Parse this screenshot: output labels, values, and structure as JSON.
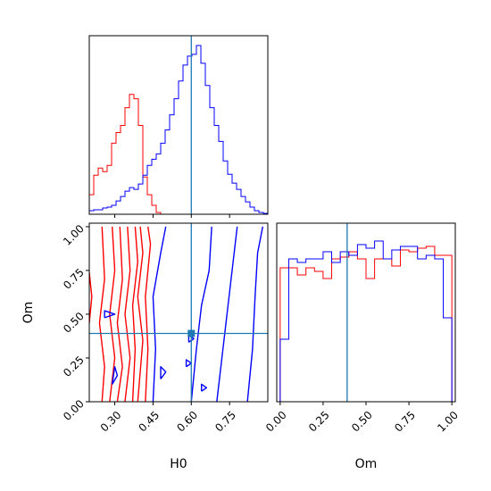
{
  "chart_data": {
    "type": "corner",
    "parameters": [
      "H0",
      "Om"
    ],
    "truths": {
      "H0": 0.6,
      "Om": 0.39
    },
    "colors": {
      "series_a": "#ff0000",
      "series_b": "#0000ff",
      "truth": "#1f77b4"
    },
    "series": [
      {
        "color": "#ff0000"
      },
      {
        "color": "#0000ff"
      }
    ],
    "panels": [
      {
        "id": "hist-H0",
        "type": "histogram",
        "xlim": [
          0.2,
          0.9
        ],
        "bin_width": 0.0175,
        "bin_start": 0.2,
        "series_counts": [
          [
            0.22,
            0.44,
            0.52,
            0.48,
            0.55,
            0.8,
            0.92,
            1.0,
            1.2,
            1.35,
            1.3,
            1.0,
            0.42,
            0.22,
            0.1,
            0.02
          ],
          [
            0.04,
            0.05,
            0.05,
            0.07,
            0.08,
            0.1,
            0.15,
            0.2,
            0.26,
            0.3,
            0.28,
            0.34,
            0.44,
            0.55,
            0.62,
            0.68,
            0.8,
            0.95,
            1.12,
            1.3,
            1.5,
            1.68,
            1.78,
            1.8,
            1.9,
            1.7,
            1.45,
            1.2,
            1.0,
            0.82,
            0.6,
            0.45,
            0.35,
            0.28,
            0.2,
            0.14,
            0.08,
            0.04,
            0.02,
            0.01
          ]
        ],
        "red_bin_start": 0.2,
        "blue_bin_start": 0.2
      },
      {
        "id": "hist-Om",
        "type": "histogram",
        "xlim": [
          -0.02,
          1.02
        ],
        "xticks": [
          0.0,
          0.25,
          0.5,
          0.75,
          1.0
        ],
        "xticklabels": [
          "0.00",
          "0.25",
          "0.50",
          "0.75",
          "1.00"
        ],
        "bin_edges": [
          0.0,
          0.05,
          0.1,
          0.15,
          0.2,
          0.25,
          0.3,
          0.35,
          0.4,
          0.45,
          0.5,
          0.55,
          0.6,
          0.65,
          0.7,
          0.75,
          0.8,
          0.85,
          0.9,
          0.95,
          1.0
        ],
        "series_counts": [
          [
            0.75,
            0.75,
            0.71,
            0.75,
            0.73,
            0.69,
            0.8,
            0.81,
            0.84,
            0.8,
            0.69,
            0.8,
            0.8,
            0.76,
            0.85,
            0.84,
            0.86,
            0.87,
            0.82,
            0.82
          ],
          [
            0.35,
            0.8,
            0.78,
            0.8,
            0.8,
            0.84,
            0.78,
            0.84,
            0.82,
            0.88,
            0.86,
            0.9,
            0.8,
            0.85,
            0.87,
            0.87,
            0.8,
            0.82,
            0.8,
            0.47
          ]
        ],
        "ylim": [
          0.0,
          1.0
        ]
      },
      {
        "id": "contour-H0-Om",
        "type": "contour",
        "xlim": [
          0.2,
          0.9
        ],
        "ylim": [
          0.0,
          1.02
        ],
        "xticks": [
          0.3,
          0.45,
          0.6,
          0.75
        ],
        "xticklabels": [
          "0.30",
          "0.45",
          "0.60",
          "0.75"
        ],
        "yticks": [
          0.0,
          0.25,
          0.5,
          0.75,
          1.0
        ],
        "yticklabels": [
          "0.00",
          "0.25",
          "0.50",
          "0.75",
          "1.00"
        ],
        "xlabel": "H0",
        "ylabel": "Om",
        "series_contours": [
          [
            [
              [
                0.2,
                0.74
              ],
              [
                0.21,
                0.6
              ],
              [
                0.2,
                0.45
              ]
            ],
            [
              [
                0.25,
                0.0
              ],
              [
                0.26,
                0.2
              ],
              [
                0.24,
                0.45
              ],
              [
                0.26,
                0.7
              ],
              [
                0.25,
                1.0
              ]
            ],
            [
              [
                0.28,
                0.0
              ],
              [
                0.3,
                0.25
              ],
              [
                0.28,
                0.5
              ],
              [
                0.3,
                0.75
              ],
              [
                0.29,
                1.0
              ]
            ],
            [
              [
                0.31,
                0.0
              ],
              [
                0.33,
                0.2
              ],
              [
                0.31,
                0.45
              ],
              [
                0.33,
                0.7
              ],
              [
                0.32,
                1.0
              ]
            ],
            [
              [
                0.34,
                0.0
              ],
              [
                0.36,
                0.25
              ],
              [
                0.34,
                0.5
              ],
              [
                0.36,
                0.75
              ],
              [
                0.35,
                1.0
              ]
            ],
            [
              [
                0.37,
                0.0
              ],
              [
                0.38,
                0.3
              ],
              [
                0.37,
                0.55
              ],
              [
                0.39,
                0.8
              ],
              [
                0.38,
                1.0
              ]
            ],
            [
              [
                0.39,
                0.0
              ],
              [
                0.41,
                0.35
              ],
              [
                0.39,
                0.6
              ],
              [
                0.41,
                0.85
              ],
              [
                0.4,
                1.0
              ]
            ],
            [
              [
                0.42,
                0.0
              ],
              [
                0.43,
                0.3
              ],
              [
                0.42,
                0.6
              ],
              [
                0.44,
                0.9
              ],
              [
                0.43,
                1.0
              ]
            ]
          ],
          [
            [
              [
                0.45,
                0.0
              ],
              [
                0.46,
                0.3
              ],
              [
                0.45,
                0.6
              ],
              [
                0.48,
                0.85
              ],
              [
                0.5,
                1.0
              ]
            ],
            [
              [
                0.6,
                0.0
              ],
              [
                0.62,
                0.3
              ],
              [
                0.64,
                0.55
              ],
              [
                0.67,
                0.75
              ],
              [
                0.68,
                1.0
              ]
            ],
            [
              [
                0.7,
                0.0
              ],
              [
                0.72,
                0.25
              ],
              [
                0.74,
                0.5
              ],
              [
                0.76,
                0.75
              ],
              [
                0.78,
                1.0
              ]
            ],
            [
              [
                0.82,
                0.0
              ],
              [
                0.84,
                0.3
              ],
              [
                0.85,
                0.6
              ],
              [
                0.86,
                0.85
              ],
              [
                0.88,
                1.0
              ]
            ],
            [
              [
                0.29,
                0.1
              ],
              [
                0.31,
                0.15
              ],
              [
                0.3,
                0.2
              ],
              [
                0.29,
                0.1
              ]
            ],
            [
              [
                0.26,
                0.48
              ],
              [
                0.3,
                0.5
              ],
              [
                0.26,
                0.52
              ],
              [
                0.26,
                0.48
              ]
            ],
            [
              [
                0.58,
                0.2
              ],
              [
                0.6,
                0.22
              ],
              [
                0.58,
                0.24
              ],
              [
                0.58,
                0.2
              ]
            ],
            [
              [
                0.59,
                0.34
              ],
              [
                0.61,
                0.36
              ],
              [
                0.59,
                0.38
              ],
              [
                0.59,
                0.34
              ]
            ],
            [
              [
                0.48,
                0.13
              ],
              [
                0.5,
                0.17
              ],
              [
                0.48,
                0.2
              ],
              [
                0.48,
                0.13
              ]
            ],
            [
              [
                0.64,
                0.06
              ],
              [
                0.66,
                0.08
              ],
              [
                0.64,
                0.1
              ],
              [
                0.64,
                0.06
              ]
            ]
          ]
        ],
        "marker": {
          "x": 0.6,
          "y": 0.39
        }
      }
    ]
  }
}
